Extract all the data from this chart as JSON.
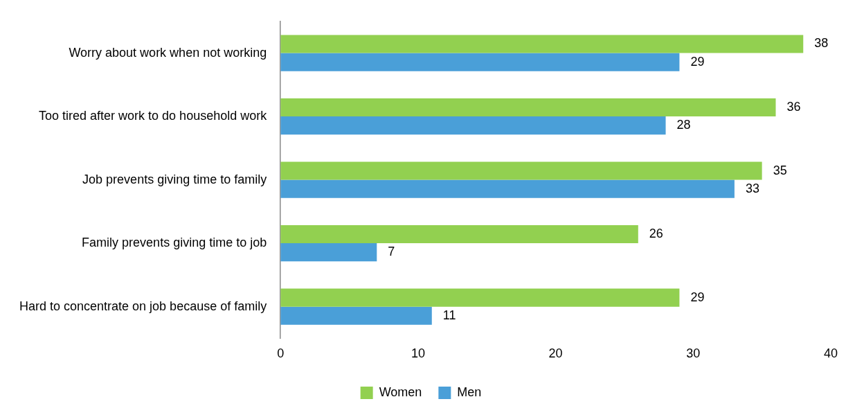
{
  "chart_data": {
    "type": "bar",
    "orientation": "horizontal",
    "categories": [
      "Worry about work when not working",
      "Too tired after work to do household work",
      "Job prevents giving time to family",
      "Family prevents giving time to job",
      "Hard to concentrate on job because of family"
    ],
    "series": [
      {
        "name": "Women",
        "color": "#92d050",
        "values": [
          38,
          36,
          35,
          26,
          29
        ]
      },
      {
        "name": "Men",
        "color": "#4a9fd8",
        "values": [
          29,
          28,
          33,
          7,
          11
        ]
      }
    ],
    "xlim": [
      0,
      40
    ],
    "xticks": [
      0,
      10,
      20,
      30,
      40
    ],
    "grid": false,
    "legend": "bottom",
    "data_labels": true
  }
}
